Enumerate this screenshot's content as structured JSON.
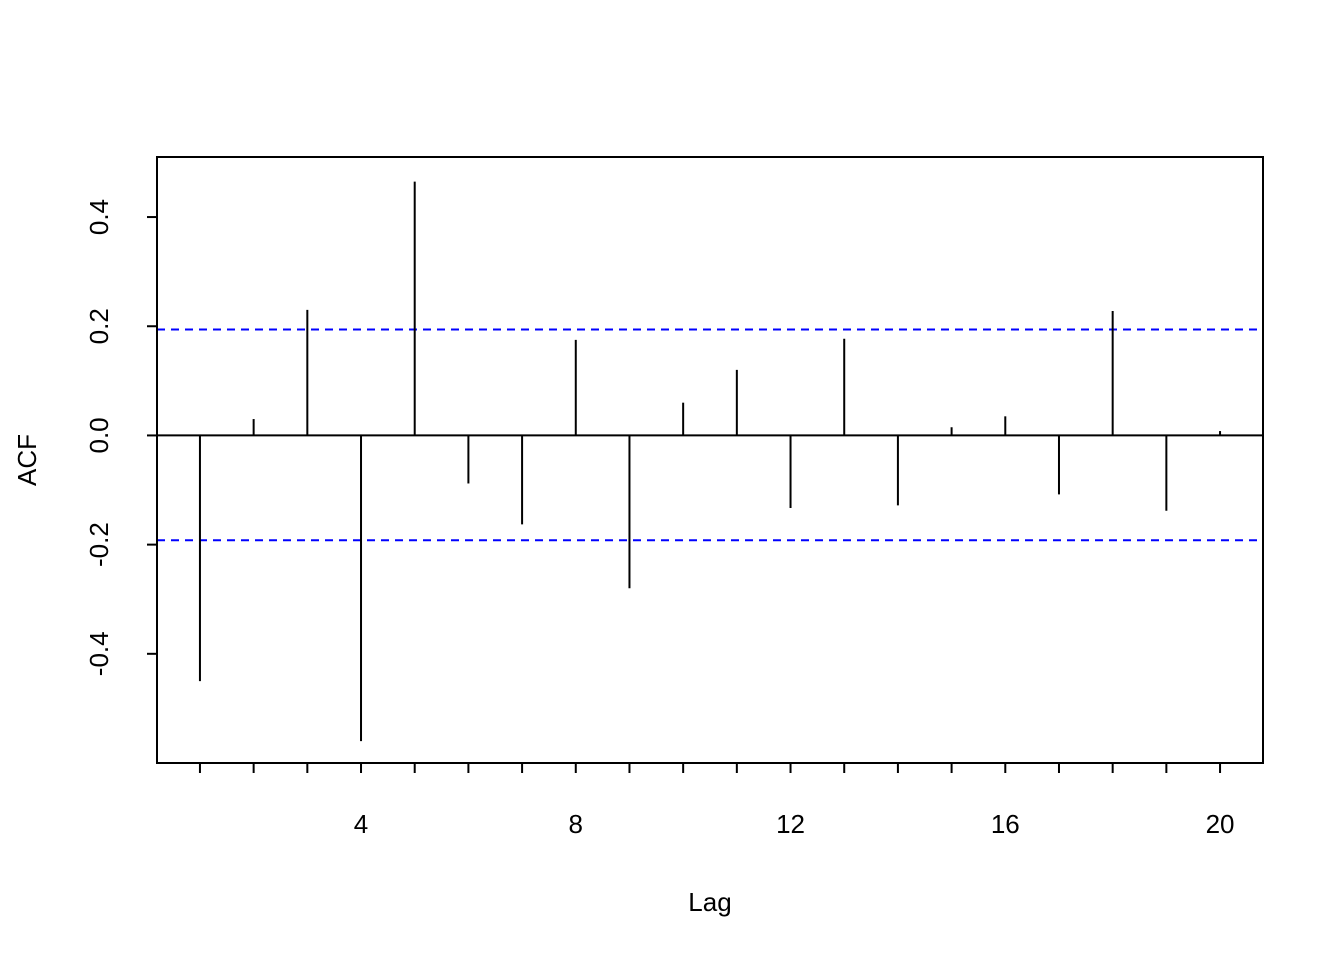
{
  "chart_data": {
    "type": "bar",
    "subtype": "acf-lollipop",
    "xlabel": "Lag",
    "ylabel": "ACF",
    "xlim": [
      0.2,
      20.8
    ],
    "ylim": [
      -0.6,
      0.51
    ],
    "x_ticks": [
      {
        "value": 1,
        "label": ""
      },
      {
        "value": 2,
        "label": ""
      },
      {
        "value": 3,
        "label": ""
      },
      {
        "value": 4,
        "label": "4"
      },
      {
        "value": 5,
        "label": ""
      },
      {
        "value": 6,
        "label": ""
      },
      {
        "value": 7,
        "label": ""
      },
      {
        "value": 8,
        "label": "8"
      },
      {
        "value": 9,
        "label": ""
      },
      {
        "value": 10,
        "label": ""
      },
      {
        "value": 11,
        "label": ""
      },
      {
        "value": 12,
        "label": "12"
      },
      {
        "value": 13,
        "label": ""
      },
      {
        "value": 14,
        "label": ""
      },
      {
        "value": 15,
        "label": ""
      },
      {
        "value": 16,
        "label": "16"
      },
      {
        "value": 17,
        "label": ""
      },
      {
        "value": 18,
        "label": ""
      },
      {
        "value": 19,
        "label": ""
      },
      {
        "value": 20,
        "label": "20"
      }
    ],
    "y_ticks": [
      {
        "value": -0.4,
        "label": "-0.4"
      },
      {
        "value": -0.2,
        "label": "-0.2"
      },
      {
        "value": 0.0,
        "label": "0.0"
      },
      {
        "value": 0.2,
        "label": "0.2"
      },
      {
        "value": 0.4,
        "label": "0.4"
      }
    ],
    "lags": [
      1,
      2,
      3,
      4,
      5,
      6,
      7,
      8,
      9,
      10,
      11,
      12,
      13,
      14,
      15,
      16,
      17,
      18,
      19,
      20
    ],
    "values": [
      -0.45,
      0.03,
      0.23,
      -0.56,
      0.465,
      -0.088,
      -0.163,
      0.175,
      -0.28,
      0.06,
      0.12,
      -0.133,
      0.177,
      -0.128,
      0.015,
      0.035,
      -0.108,
      0.228,
      -0.138,
      0.008
    ],
    "confidence_bounds": [
      0.194,
      -0.192
    ],
    "grid": false,
    "colors": {
      "bars": "#000000",
      "zero_line": "#000000",
      "confidence": "#0000ff",
      "frame": "#000000"
    }
  }
}
